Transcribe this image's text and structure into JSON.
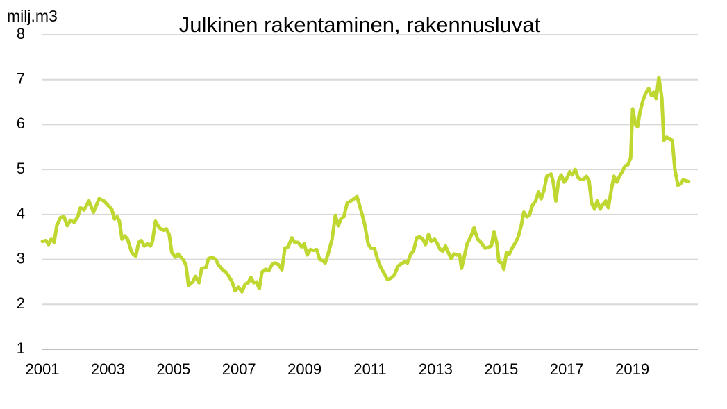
{
  "chart_data": {
    "type": "line",
    "title": "Julkinen rakentaminen, rakennusluvat",
    "y_label": "milj.m3",
    "color": "#bfd730",
    "grid": true,
    "xlim": [
      2001,
      2021
    ],
    "xticks": [
      2001,
      2003,
      2005,
      2007,
      2009,
      2011,
      2013,
      2015,
      2017,
      2019
    ],
    "ylim": [
      1,
      8
    ],
    "yticks": [
      1,
      2,
      3,
      4,
      5,
      6,
      7,
      8
    ],
    "x": [
      2001.0,
      2001.11,
      2001.19,
      2001.27,
      2001.36,
      2001.44,
      2001.55,
      2001.66,
      2001.76,
      2001.85,
      2001.97,
      2002.08,
      2002.16,
      2002.27,
      2002.42,
      2002.56,
      2002.73,
      2002.88,
      2003.03,
      2003.11,
      2003.2,
      2003.28,
      2003.35,
      2003.43,
      2003.52,
      2003.6,
      2003.73,
      2003.85,
      2003.94,
      2004.02,
      2004.11,
      2004.21,
      2004.3,
      2004.36,
      2004.45,
      2004.57,
      2004.7,
      2004.78,
      2004.87,
      2004.95,
      2005.06,
      2005.14,
      2005.29,
      2005.38,
      2005.46,
      2005.59,
      2005.67,
      2005.78,
      2005.86,
      2005.99,
      2006.07,
      2006.18,
      2006.29,
      2006.37,
      2006.52,
      2006.6,
      2006.71,
      2006.79,
      2006.88,
      2006.98,
      2007.09,
      2007.19,
      2007.28,
      2007.36,
      2007.45,
      2007.53,
      2007.62,
      2007.7,
      2007.81,
      2007.91,
      2008.02,
      2008.1,
      2008.21,
      2008.31,
      2008.4,
      2008.5,
      2008.61,
      2008.7,
      2008.8,
      2008.91,
      2008.99,
      2009.08,
      2009.18,
      2009.27,
      2009.37,
      2009.46,
      2009.54,
      2009.63,
      2009.73,
      2009.84,
      2009.94,
      2010.03,
      2010.11,
      2010.2,
      2010.3,
      2010.41,
      2010.51,
      2010.6,
      2010.7,
      2010.83,
      2010.94,
      2011.02,
      2011.13,
      2011.23,
      2011.34,
      2011.42,
      2011.53,
      2011.63,
      2011.74,
      2011.85,
      2011.95,
      2012.06,
      2012.14,
      2012.23,
      2012.33,
      2012.42,
      2012.52,
      2012.61,
      2012.69,
      2012.78,
      2012.86,
      2012.97,
      2013.05,
      2013.14,
      2013.22,
      2013.3,
      2013.39,
      2013.47,
      2013.56,
      2013.64,
      2013.73,
      2013.79,
      2013.87,
      2013.96,
      2014.07,
      2014.17,
      2014.28,
      2014.38,
      2014.51,
      2014.61,
      2014.7,
      2014.78,
      2014.87,
      2014.93,
      2015.02,
      2015.08,
      2015.16,
      2015.25,
      2015.33,
      2015.44,
      2015.52,
      2015.61,
      2015.69,
      2015.78,
      2015.86,
      2015.95,
      2016.05,
      2016.14,
      2016.22,
      2016.31,
      2016.39,
      2016.52,
      2016.58,
      2016.67,
      2016.75,
      2016.83,
      2016.92,
      2017.0,
      2017.09,
      2017.17,
      2017.26,
      2017.34,
      2017.43,
      2017.51,
      2017.6,
      2017.68,
      2017.76,
      2017.85,
      2017.93,
      2018.02,
      2018.1,
      2018.19,
      2018.27,
      2018.36,
      2018.44,
      2018.53,
      2018.61,
      2018.69,
      2018.78,
      2018.86,
      2018.95,
      2019.01,
      2019.1,
      2019.16,
      2019.24,
      2019.33,
      2019.41,
      2019.5,
      2019.58,
      2019.65,
      2019.73,
      2019.81,
      2019.9,
      2019.96,
      2020.05,
      2020.13,
      2020.22,
      2020.3,
      2020.39,
      2020.47,
      2020.55,
      2020.64,
      2020.72
    ],
    "values": [
      3.4,
      3.42,
      3.33,
      3.45,
      3.38,
      3.75,
      3.93,
      3.95,
      3.75,
      3.87,
      3.83,
      3.95,
      4.15,
      4.1,
      4.3,
      4.05,
      4.35,
      4.3,
      4.18,
      4.13,
      3.9,
      3.95,
      3.85,
      3.45,
      3.52,
      3.45,
      3.15,
      3.07,
      3.38,
      3.42,
      3.3,
      3.35,
      3.3,
      3.4,
      3.85,
      3.7,
      3.65,
      3.68,
      3.55,
      3.15,
      3.05,
      3.12,
      3.0,
      2.88,
      2.42,
      2.5,
      2.62,
      2.48,
      2.8,
      2.82,
      3.02,
      3.05,
      3.0,
      2.88,
      2.75,
      2.72,
      2.6,
      2.5,
      2.3,
      2.38,
      2.28,
      2.45,
      2.48,
      2.6,
      2.48,
      2.5,
      2.35,
      2.72,
      2.78,
      2.75,
      2.9,
      2.92,
      2.88,
      2.77,
      3.25,
      3.28,
      3.48,
      3.38,
      3.38,
      3.28,
      3.35,
      3.1,
      3.22,
      3.2,
      3.22,
      3.0,
      2.98,
      2.92,
      3.15,
      3.45,
      3.98,
      3.75,
      3.9,
      3.95,
      4.25,
      4.3,
      4.35,
      4.4,
      4.15,
      3.8,
      3.35,
      3.25,
      3.25,
      3.0,
      2.8,
      2.7,
      2.55,
      2.58,
      2.65,
      2.85,
      2.9,
      2.95,
      2.92,
      3.1,
      3.2,
      3.48,
      3.5,
      3.45,
      3.33,
      3.55,
      3.4,
      3.45,
      3.35,
      3.22,
      3.18,
      3.3,
      3.15,
      3.02,
      3.12,
      3.1,
      3.1,
      2.8,
      3.05,
      3.35,
      3.5,
      3.7,
      3.45,
      3.38,
      3.25,
      3.27,
      3.3,
      3.62,
      3.35,
      2.95,
      2.92,
      2.78,
      3.15,
      3.12,
      3.25,
      3.38,
      3.5,
      3.75,
      4.05,
      3.95,
      3.98,
      4.2,
      4.3,
      4.5,
      4.35,
      4.55,
      4.85,
      4.9,
      4.75,
      4.3,
      4.75,
      4.88,
      4.72,
      4.8,
      4.95,
      4.88,
      5.0,
      4.82,
      4.78,
      4.78,
      4.85,
      4.75,
      4.25,
      4.12,
      4.3,
      4.12,
      4.22,
      4.3,
      4.15,
      4.55,
      4.85,
      4.72,
      4.85,
      4.95,
      5.08,
      5.1,
      5.25,
      6.35,
      6.0,
      5.95,
      6.3,
      6.55,
      6.7,
      6.8,
      6.65,
      6.72,
      6.58,
      7.05,
      6.6,
      5.65,
      5.72,
      5.68,
      5.65,
      5.0,
      4.65,
      4.68,
      4.77,
      4.75,
      4.73
    ]
  }
}
